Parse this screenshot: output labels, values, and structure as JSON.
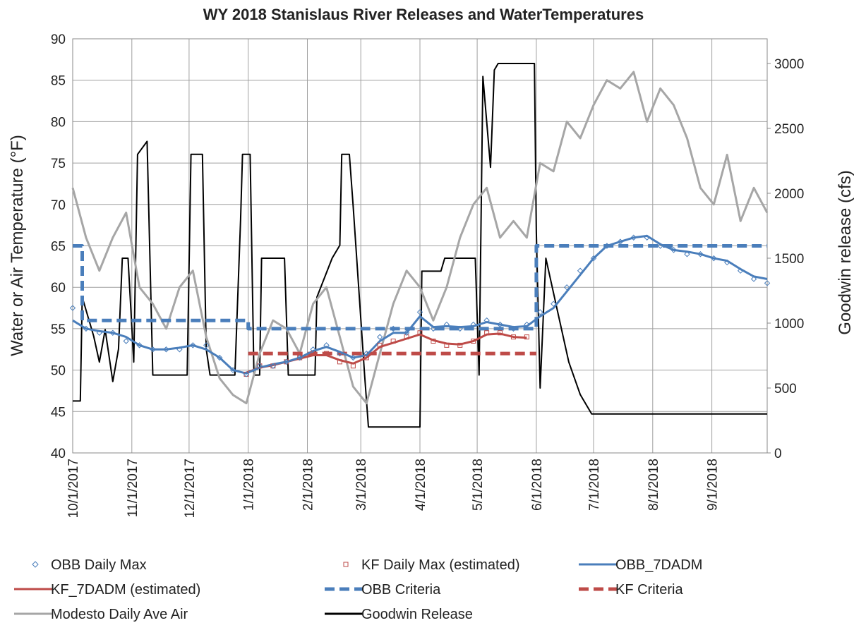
{
  "chart_data": {
    "type": "line",
    "title": "WY 2018 Stanislaus River Releases and WaterTemperatures",
    "y_label": "Water or Air Temperature (°F)",
    "y2_label": "Goodwin release  (cfs)",
    "xlim": [
      "10/1/2017",
      "9/30/2018"
    ],
    "xticks": [
      "10/1/2017",
      "11/1/2017",
      "12/1/2017",
      "1/1/2018",
      "2/1/2018",
      "3/1/2018",
      "4/1/2018",
      "5/1/2018",
      "6/1/2018",
      "7/1/2018",
      "8/1/2018",
      "9/1/2018"
    ],
    "ylim": [
      40,
      90
    ],
    "yticks": [
      40,
      45,
      50,
      55,
      60,
      65,
      70,
      75,
      80,
      85,
      90
    ],
    "y2lim": [
      0,
      3190
    ],
    "y2ticks": [
      0,
      500,
      1000,
      1500,
      2000,
      2500,
      3000
    ],
    "grid": true,
    "x": [
      "10/1/2017",
      "10/8/2017",
      "10/15/2017",
      "10/22/2017",
      "10/29/2017",
      "11/5/2017",
      "11/12/2017",
      "11/19/2017",
      "11/26/2017",
      "12/3/2017",
      "12/10/2017",
      "12/17/2017",
      "12/24/2017",
      "12/31/2017",
      "1/7/2018",
      "1/14/2018",
      "1/21/2018",
      "1/28/2018",
      "2/4/2018",
      "2/11/2018",
      "2/18/2018",
      "2/25/2018",
      "3/4/2018",
      "3/11/2018",
      "3/18/2018",
      "3/25/2018",
      "4/1/2018",
      "4/8/2018",
      "4/15/2018",
      "4/22/2018",
      "4/29/2018",
      "5/6/2018",
      "5/13/2018",
      "5/20/2018",
      "5/27/2018",
      "6/3/2018",
      "6/10/2018",
      "6/17/2018",
      "6/24/2018",
      "7/1/2018",
      "7/8/2018",
      "7/15/2018",
      "7/22/2018",
      "7/29/2018",
      "8/5/2018",
      "8/12/2018",
      "8/19/2018",
      "8/26/2018",
      "9/2/2018",
      "9/9/2018",
      "9/16/2018",
      "9/23/2018",
      "9/30/2018"
    ],
    "series": [
      {
        "name": "OBB Daily Max",
        "color": "#4a7ebb",
        "marker": "diamond",
        "values": [
          57.5,
          55,
          54.5,
          54.5,
          53.5,
          53,
          52.5,
          52.5,
          52.5,
          53,
          53,
          51.5,
          50,
          49.5,
          50.5,
          50.5,
          51,
          51.5,
          52.5,
          53,
          52,
          51.5,
          52,
          54,
          55,
          54.5,
          57,
          55,
          55.5,
          55,
          55.5,
          56,
          55.5,
          55,
          55.5,
          57,
          58,
          60,
          62,
          63.5,
          65,
          65.5,
          66,
          66,
          65,
          64.5,
          64,
          64,
          63.5,
          63,
          62,
          61,
          60.5
        ]
      },
      {
        "name": "KF Daily Max (estimated)",
        "color": "#be4b48",
        "marker": "square",
        "values": [
          null,
          null,
          null,
          null,
          null,
          null,
          null,
          null,
          null,
          null,
          null,
          null,
          null,
          49.5,
          50.5,
          50.5,
          51,
          51.5,
          52,
          52,
          51,
          50.5,
          51.5,
          53,
          53.5,
          54,
          54.5,
          53.5,
          53,
          53,
          53.5,
          54.5,
          54.5,
          54,
          54,
          null,
          null,
          null,
          null,
          null,
          null,
          null,
          null,
          null,
          null,
          null,
          null,
          null,
          null,
          null,
          null,
          null,
          null
        ]
      },
      {
        "name": "OBB_7DADM",
        "color": "#4a7ebb",
        "values": [
          56,
          55,
          54.7,
          54.5,
          54,
          53,
          52.5,
          52.5,
          52.7,
          53,
          52.5,
          51.5,
          50,
          49.6,
          50.3,
          50.7,
          51,
          51.5,
          52.3,
          52.8,
          52.2,
          51.5,
          51.8,
          53.5,
          54.5,
          54.5,
          56.5,
          55.2,
          55.3,
          55.2,
          55.3,
          55.8,
          55.5,
          55.2,
          55.3,
          56.5,
          57.5,
          59.5,
          61.5,
          63.5,
          65,
          65.5,
          66,
          66.2,
          65.2,
          64.5,
          64.3,
          64,
          63.5,
          63.2,
          62.2,
          61.3,
          61
        ]
      },
      {
        "name": "KF_7DADM (estimated)",
        "color": "#be4b48",
        "values": [
          null,
          null,
          null,
          null,
          null,
          null,
          null,
          null,
          null,
          null,
          null,
          null,
          null,
          49.7,
          50.3,
          50.6,
          51,
          51.4,
          51.8,
          51.8,
          51.2,
          50.8,
          51.5,
          52.8,
          53.3,
          53.8,
          54.3,
          53.6,
          53.2,
          53.1,
          53.5,
          54.3,
          54.4,
          54,
          53.9,
          null,
          null,
          null,
          null,
          null,
          null,
          null,
          null,
          null,
          null,
          null,
          null,
          null,
          null,
          null,
          null,
          null,
          null
        ]
      },
      {
        "name": "OBB Criteria",
        "color": "#4a7ebb",
        "dash": true,
        "x": [
          "10/1/2017",
          "10/6/2017",
          "10/6/2017",
          "1/1/2018",
          "1/1/2018",
          "6/1/2018",
          "6/1/2018",
          "9/30/2018"
        ],
        "values": [
          65,
          65,
          56,
          56,
          55,
          55,
          65,
          65
        ]
      },
      {
        "name": "KF Criteria",
        "color": "#be4b48",
        "dash": true,
        "x": [
          "1/1/2018",
          "6/1/2018"
        ],
        "values": [
          52,
          52
        ]
      },
      {
        "name": "Modesto Daily Ave Air",
        "color": "#a6a6a6",
        "values": [
          72,
          66,
          62,
          66,
          69,
          60,
          58,
          55,
          60,
          62,
          54,
          49,
          47,
          46,
          52,
          56,
          55,
          52,
          58,
          60,
          54,
          48,
          46,
          52,
          58,
          62,
          60,
          56,
          60,
          66,
          70,
          72,
          66,
          68,
          66,
          75,
          74,
          80,
          78,
          82,
          85,
          84,
          86,
          80,
          84,
          82,
          78,
          72,
          70,
          76,
          68,
          72,
          69
        ]
      },
      {
        "name": "Goodwin Release",
        "color": "#000000",
        "axis": "y2",
        "x": [
          "10/1/2017",
          "10/5/2017",
          "10/6/2017",
          "10/12/2017",
          "10/15/2017",
          "10/18/2017",
          "10/22/2017",
          "10/25/2017",
          "10/27/2017",
          "10/30/2017",
          "11/2/2017",
          "11/4/2017",
          "11/9/2017",
          "11/12/2017",
          "11/30/2017",
          "12/2/2017",
          "12/8/2017",
          "12/10/2017",
          "12/12/2017",
          "12/25/2017",
          "12/28/2017",
          "12/29/2017",
          "1/2/2018",
          "1/4/2018",
          "1/7/2018",
          "1/8/2018",
          "1/20/2018",
          "1/22/2018",
          "2/5/2018",
          "2/6/2018",
          "2/14/2018",
          "2/18/2018",
          "2/19/2018",
          "2/23/2018",
          "2/25/2018",
          "3/3/2018",
          "3/5/2018",
          "4/1/2018",
          "4/2/2018",
          "4/12/2018",
          "4/14/2018",
          "4/30/2018",
          "5/2/2018",
          "5/4/2018",
          "5/8/2018",
          "5/10/2018",
          "5/12/2018",
          "5/31/2018",
          "6/1/2018",
          "6/3/2018",
          "6/6/2018",
          "6/12/2018",
          "6/18/2018",
          "6/24/2018",
          "6/30/2018",
          "9/30/2018"
        ],
        "values": [
          400,
          400,
          1200,
          900,
          700,
          950,
          550,
          800,
          1500,
          1500,
          700,
          2300,
          2400,
          600,
          600,
          2300,
          2300,
          800,
          600,
          600,
          1800,
          2300,
          2300,
          600,
          600,
          1500,
          1500,
          600,
          600,
          1200,
          1500,
          1600,
          2300,
          2300,
          1900,
          600,
          200,
          200,
          1400,
          1400,
          1500,
          1500,
          600,
          2900,
          2200,
          2950,
          3000,
          3000,
          1700,
          500,
          1500,
          1100,
          700,
          450,
          300,
          300
        ]
      }
    ]
  }
}
